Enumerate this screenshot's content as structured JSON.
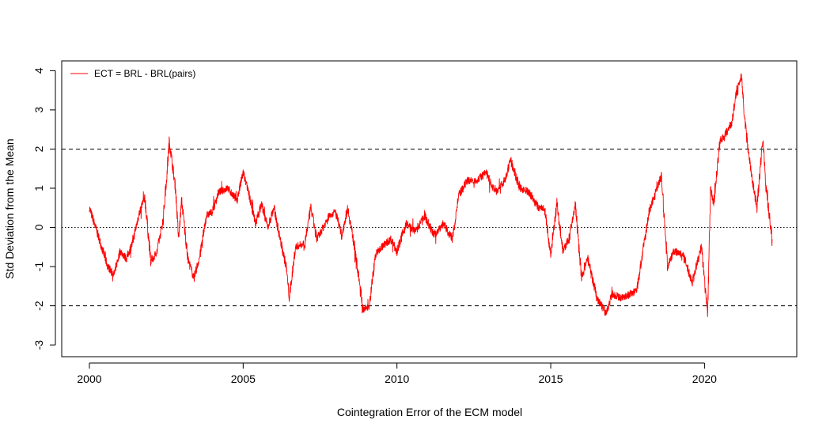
{
  "chart_data": {
    "type": "line",
    "title": "",
    "xlabel": "Cointegration Error of the ECM model",
    "ylabel": "Std Deviation from the Mean",
    "xlim": [
      1999.1,
      2023.0
    ],
    "ylim": [
      -3.3,
      4.25
    ],
    "x_ticks": [
      "2000",
      "2005",
      "2010",
      "2015",
      "2020"
    ],
    "y_ticks": [
      "-3",
      "-2",
      "-1",
      "0",
      "1",
      "2",
      "3",
      "4"
    ],
    "reference_lines": [
      {
        "y": 2,
        "style": "dashed"
      },
      {
        "y": 0,
        "style": "dotted"
      },
      {
        "y": -2,
        "style": "dashed"
      }
    ],
    "legend": {
      "position": "top-left",
      "label": "ECT = BRL - BRL(pairs)"
    },
    "series": [
      {
        "name": "ECT = BRL - BRL(pairs)",
        "color": "#ff0000",
        "x": [
          2000.0,
          2000.2,
          2000.4,
          2000.6,
          2000.8,
          2001.0,
          2001.2,
          2001.4,
          2001.6,
          2001.8,
          2002.0,
          2002.2,
          2002.4,
          2002.6,
          2002.8,
          2002.9,
          2003.0,
          2003.2,
          2003.4,
          2003.6,
          2003.8,
          2004.0,
          2004.2,
          2004.5,
          2004.8,
          2005.0,
          2005.2,
          2005.4,
          2005.6,
          2005.8,
          2006.0,
          2006.2,
          2006.4,
          2006.5,
          2006.7,
          2007.0,
          2007.2,
          2007.4,
          2007.6,
          2007.8,
          2008.0,
          2008.2,
          2008.4,
          2008.6,
          2008.9,
          2009.1,
          2009.3,
          2009.5,
          2009.8,
          2010.0,
          2010.3,
          2010.6,
          2010.9,
          2011.2,
          2011.5,
          2011.8,
          2012.0,
          2012.3,
          2012.6,
          2012.9,
          2013.2,
          2013.5,
          2013.7,
          2014.0,
          2014.3,
          2014.6,
          2014.8,
          2015.0,
          2015.2,
          2015.4,
          2015.6,
          2015.8,
          2016.0,
          2016.2,
          2016.5,
          2016.8,
          2017.0,
          2017.3,
          2017.6,
          2017.8,
          2018.0,
          2018.2,
          2018.4,
          2018.6,
          2018.8,
          2019.0,
          2019.3,
          2019.6,
          2019.9,
          2020.1,
          2020.2,
          2020.3,
          2020.5,
          2020.7,
          2020.9,
          2021.0,
          2021.2,
          2021.3,
          2021.5,
          2021.7,
          2021.9,
          2022.0,
          2022.2
        ],
        "values": [
          0.5,
          0.0,
          -0.5,
          -1.0,
          -1.2,
          -0.6,
          -0.8,
          -0.4,
          0.3,
          0.8,
          -0.9,
          -0.6,
          0.2,
          2.2,
          1.0,
          -0.3,
          0.7,
          -0.8,
          -1.3,
          -0.7,
          0.3,
          0.4,
          0.9,
          1.0,
          0.7,
          1.4,
          0.8,
          0.1,
          0.6,
          0.0,
          0.5,
          -0.3,
          -1.0,
          -1.8,
          -0.5,
          -0.4,
          0.5,
          -0.3,
          0.0,
          0.3,
          0.4,
          -0.2,
          0.5,
          -0.4,
          -2.1,
          -2.0,
          -0.7,
          -0.5,
          -0.3,
          -0.6,
          0.1,
          -0.1,
          0.3,
          -0.2,
          0.1,
          -0.3,
          0.8,
          1.2,
          1.2,
          1.4,
          0.9,
          1.2,
          1.7,
          1.0,
          0.9,
          0.5,
          0.5,
          -0.7,
          0.6,
          -0.6,
          -0.3,
          0.6,
          -1.3,
          -0.8,
          -1.8,
          -2.2,
          -1.7,
          -1.8,
          -1.7,
          -1.6,
          -0.6,
          0.4,
          0.9,
          1.3,
          -1.0,
          -0.6,
          -0.7,
          -1.4,
          -0.5,
          -2.2,
          1.0,
          0.6,
          2.2,
          2.4,
          2.7,
          3.3,
          3.9,
          2.8,
          1.5,
          0.5,
          2.3,
          1.0,
          -0.3
        ]
      }
    ]
  }
}
